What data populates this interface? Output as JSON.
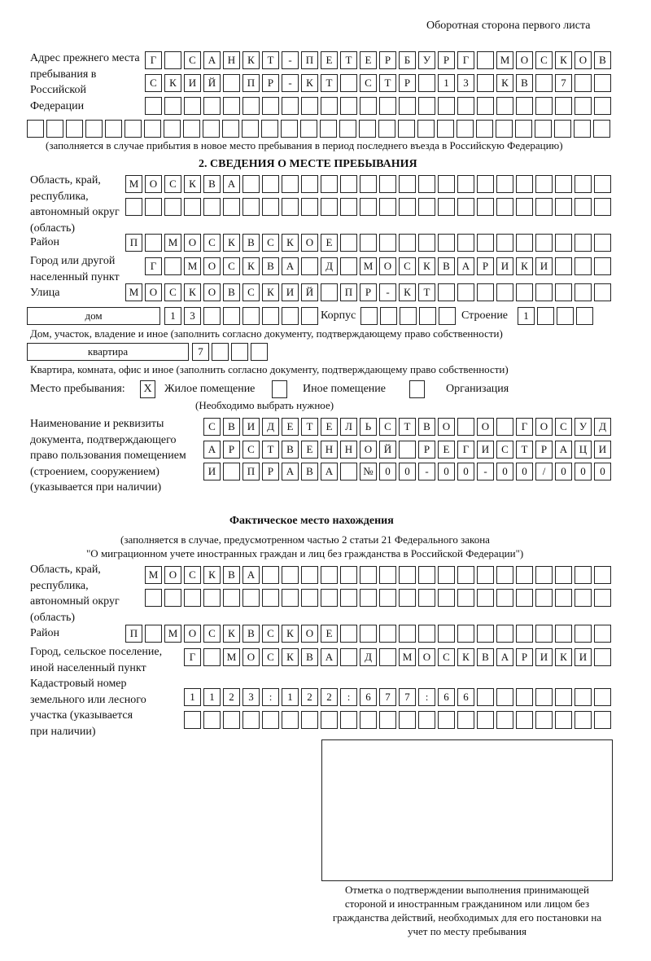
{
  "header": {
    "page_side": "Оборотная сторона первого листа"
  },
  "previous_address": {
    "label": "Адрес прежнего места пребывания в Российской Федерации",
    "rows": [
      [
        "Г",
        "",
        "С",
        "А",
        "Н",
        "К",
        "Т",
        "-",
        "П",
        "Е",
        "Т",
        "Е",
        "Р",
        "Б",
        "У",
        "Р",
        "Г",
        "",
        "М",
        "О",
        "С",
        "К",
        "О",
        "В"
      ],
      [
        "С",
        "К",
        "И",
        "Й",
        "",
        "П",
        "Р",
        "-",
        "К",
        "Т",
        "",
        "С",
        "Т",
        "Р",
        "",
        "1",
        "3",
        "",
        "К",
        "В",
        "",
        "7",
        "",
        ""
      ],
      [
        "",
        "",
        "",
        "",
        "",
        "",
        "",
        "",
        "",
        "",
        "",
        "",
        "",
        "",
        "",
        "",
        "",
        "",
        "",
        "",
        "",
        "",
        "",
        ""
      ],
      [
        "",
        "",
        "",
        "",
        "",
        "",
        "",
        "",
        "",
        "",
        "",
        "",
        "",
        "",
        "",
        "",
        "",
        "",
        "",
        "",
        "",
        "",
        "",
        "",
        "",
        "",
        "",
        "",
        "",
        ""
      ]
    ],
    "note": "(заполняется в случае прибытия в новое место пребывания в период последнего въезда в Российскую Федерацию)"
  },
  "section2": {
    "title": "2. СВЕДЕНИЯ О МЕСТЕ ПРЕБЫВАНИЯ",
    "region_label": "Область, край, республика, автономный округ (область)",
    "region_rows": [
      [
        "М",
        "О",
        "С",
        "К",
        "В",
        "А",
        "",
        "",
        "",
        "",
        "",
        "",
        "",
        "",
        "",
        "",
        "",
        "",
        "",
        "",
        "",
        "",
        "",
        "",
        ""
      ],
      [
        "",
        "",
        "",
        "",
        "",
        "",
        "",
        "",
        "",
        "",
        "",
        "",
        "",
        "",
        "",
        "",
        "",
        "",
        "",
        "",
        "",
        "",
        "",
        "",
        ""
      ]
    ],
    "district_label": "Район",
    "district_row": [
      "П",
      "",
      "М",
      "О",
      "С",
      "К",
      "В",
      "С",
      "К",
      "О",
      "Е",
      "",
      "",
      "",
      "",
      "",
      "",
      "",
      "",
      "",
      "",
      "",
      "",
      "",
      ""
    ],
    "city_label": "Город или другой населенный пункт",
    "city_row": [
      "Г",
      "",
      "М",
      "О",
      "С",
      "К",
      "В",
      "А",
      "",
      "Д",
      "",
      "М",
      "О",
      "С",
      "К",
      "В",
      "А",
      "Р",
      "И",
      "К",
      "И",
      "",
      "",
      ""
    ],
    "street_label": "Улица",
    "street_row": [
      "М",
      "О",
      "С",
      "К",
      "О",
      "В",
      "С",
      "К",
      "И",
      "Й",
      "",
      "П",
      "Р",
      "-",
      "К",
      "Т",
      "",
      "",
      "",
      "",
      "",
      "",
      "",
      "",
      ""
    ],
    "house_type": "дом",
    "house_number": [
      "1",
      "3",
      "",
      "",
      "",
      "",
      "",
      ""
    ],
    "building_label": "Корпус",
    "building": [
      "",
      "",
      "",
      "",
      ""
    ],
    "structure_label": "Строение",
    "structure": [
      "1",
      "",
      "",
      ""
    ],
    "house_note": "Дом, участок, владение и иное (заполнить согласно документу, подтверждающему право собственности)",
    "apartment_type": "квартира",
    "apartment_number": [
      "7",
      "",
      "",
      ""
    ],
    "apartment_note": "Квартира, комната, офис и иное (заполнить согласно документу, подтверждающему право собственности)",
    "stay_place_label": "Место пребывания:",
    "stay_options": [
      {
        "label": "Жилое помещение",
        "mark": "Х"
      },
      {
        "label": "Иное помещение",
        "mark": ""
      },
      {
        "label": "Организация",
        "mark": ""
      }
    ],
    "stay_note": "(Необходимо выбрать нужное)",
    "document_label": "Наименование и реквизиты документа, подтверждающего право пользования помещением (строением, сооружением) (указывается при наличии)",
    "document_rows": [
      [
        "С",
        "В",
        "И",
        "Д",
        "Е",
        "Т",
        "Е",
        "Л",
        "Ь",
        "С",
        "Т",
        "В",
        "О",
        "",
        "О",
        "",
        "Г",
        "О",
        "С",
        "У",
        "Д"
      ],
      [
        "А",
        "Р",
        "С",
        "Т",
        "В",
        "Е",
        "Н",
        "Н",
        "О",
        "Й",
        "",
        "Р",
        "Е",
        "Г",
        "И",
        "С",
        "Т",
        "Р",
        "А",
        "Ц",
        "И"
      ],
      [
        "И",
        "",
        "П",
        "Р",
        "А",
        "В",
        "А",
        "",
        "№",
        "0",
        "0",
        "-",
        "0",
        "0",
        "-",
        "0",
        "0",
        "/",
        "0",
        "0",
        "0"
      ]
    ]
  },
  "actual_location": {
    "title": "Фактическое место нахождения",
    "note_line1": "(заполняется в случае, предусмотренном частью 2 статьи 21 Федерального закона",
    "note_line2": "\"О миграционном учете иностранных граждан и лиц без гражданства в Российской Федерации\")",
    "region_label": "Область, край, республика, автономный округ (область)",
    "region_rows": [
      [
        "М",
        "О",
        "С",
        "К",
        "В",
        "А",
        "",
        "",
        "",
        "",
        "",
        "",
        "",
        "",
        "",
        "",
        "",
        "",
        "",
        "",
        "",
        "",
        "",
        ""
      ],
      [
        "",
        "",
        "",
        "",
        "",
        "",
        "",
        "",
        "",
        "",
        "",
        "",
        "",
        "",
        "",
        "",
        "",
        "",
        "",
        "",
        "",
        "",
        "",
        ""
      ]
    ],
    "district_label": "Район",
    "district_row": [
      "П",
      "",
      "М",
      "О",
      "С",
      "К",
      "В",
      "С",
      "К",
      "О",
      "Е",
      "",
      "",
      "",
      "",
      "",
      "",
      "",
      "",
      "",
      "",
      "",
      "",
      "",
      ""
    ],
    "city_label": "Город, сельское поселение, иной населенный пункт",
    "city_row": [
      "Г",
      "",
      "М",
      "О",
      "С",
      "К",
      "В",
      "А",
      "",
      "Д",
      "",
      "М",
      "О",
      "С",
      "К",
      "В",
      "А",
      "Р",
      "И",
      "К",
      "И",
      ""
    ],
    "cadastral_label": "Кадастровый номер земельного или лесного участка (указывается при наличии)",
    "cadastral_rows": [
      [
        "1",
        "1",
        "2",
        "3",
        ":",
        "1",
        "2",
        "2",
        ":",
        "6",
        "7",
        "7",
        ":",
        "6",
        "6",
        "",
        "",
        "",
        "",
        "",
        "",
        ""
      ],
      [
        "",
        "",
        "",
        "",
        "",
        "",
        "",
        "",
        "",
        "",
        "",
        "",
        "",
        "",
        "",
        "",
        "",
        "",
        "",
        "",
        "",
        ""
      ]
    ]
  },
  "confirmation": {
    "caption": "Отметка о подтверждении выполнения принимающей стороной и иностранным гражданином или лицом без гражданства действий, необходимых для его постановки на учет по месту пребывания"
  }
}
